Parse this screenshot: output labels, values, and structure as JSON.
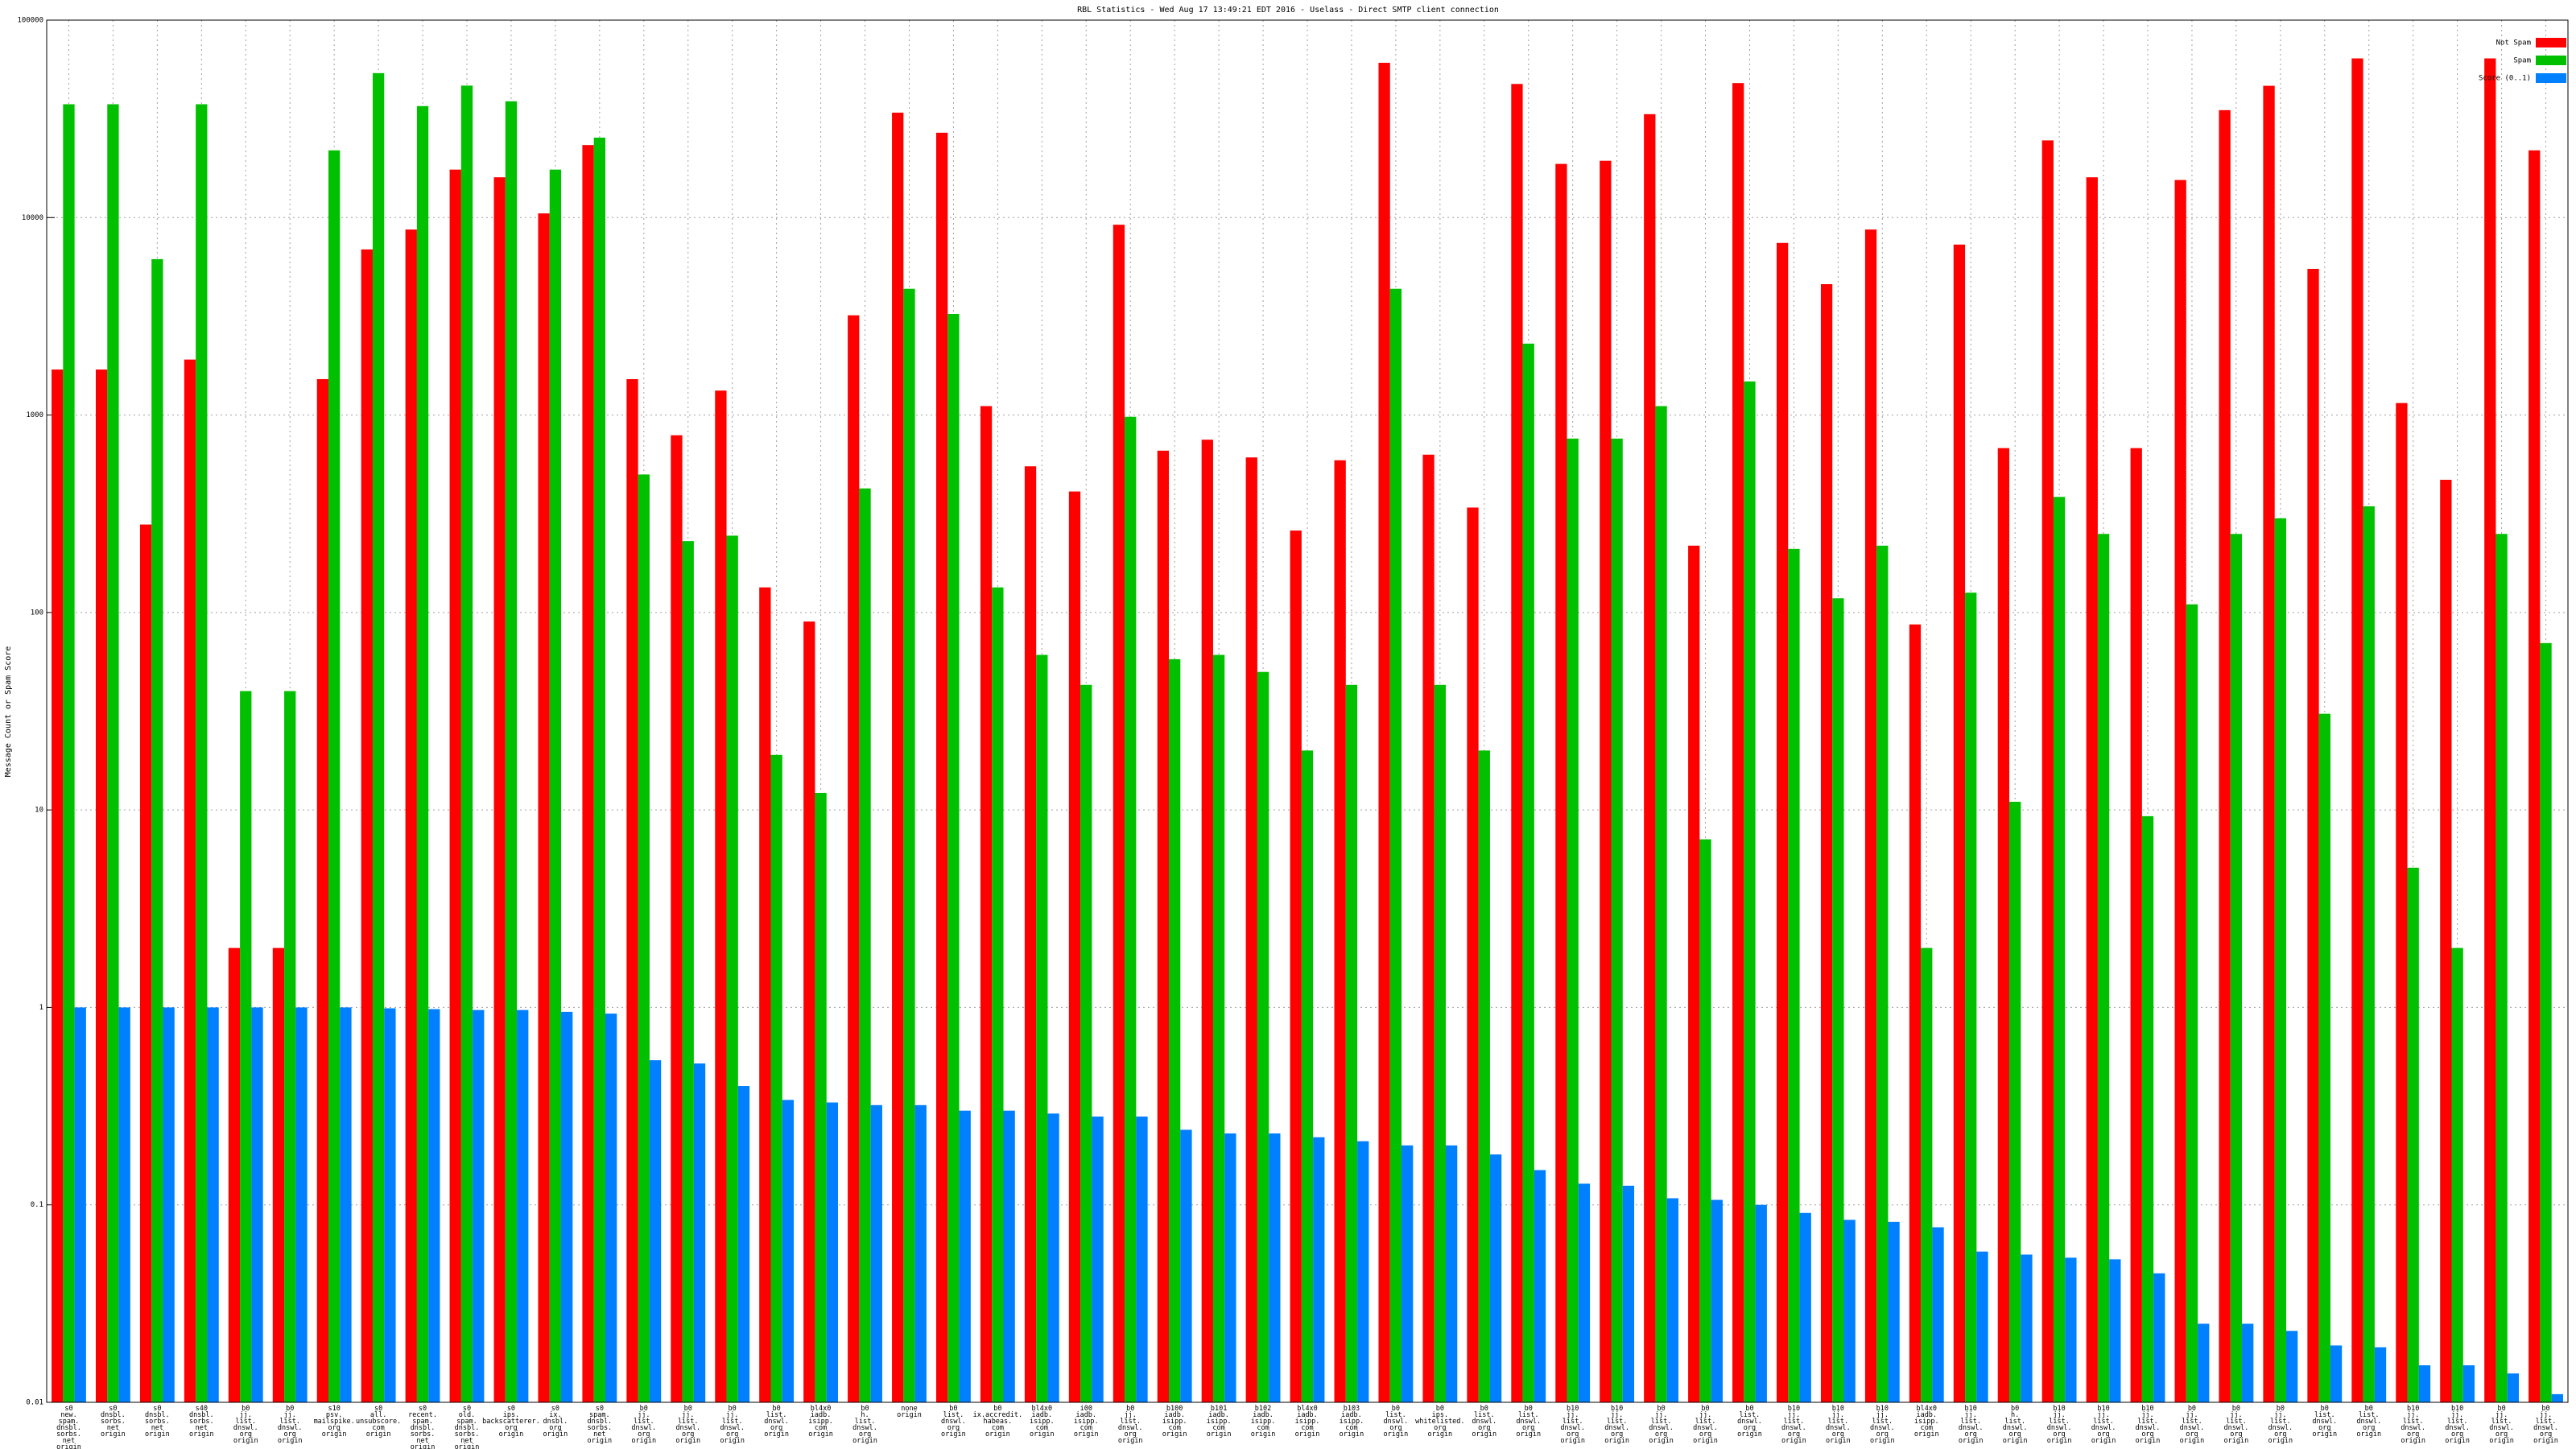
{
  "chart_data": {
    "type": "bar",
    "title": "RBL Statistics - Wed Aug 17 13:49:21 EDT 2016 - Uselass - Direct SMTP client connection",
    "y_label": "Message Count or Spam Score",
    "log_scale": true,
    "grid": true,
    "legend": "top-right",
    "ylim": [
      0.01,
      100000
    ],
    "yticks": [
      0.01,
      0.1,
      1,
      10,
      100,
      1000,
      10000,
      100000
    ],
    "categories": [
      [
        "s0",
        "new.",
        "spam.",
        "dnsbl.",
        "sorbs.",
        "net",
        "origin"
      ],
      [
        "s0",
        "dnsbl.",
        "sorbs.",
        "net",
        "origin"
      ],
      [
        "s0",
        "dnsbl.",
        "sorbs.",
        "net",
        "origin"
      ],
      [
        "s40",
        "dnsbl.",
        "sorbs.",
        "net",
        "origin"
      ],
      [
        "b0",
        "jj.",
        "list.",
        "dnswl.",
        "org",
        "origin"
      ],
      [
        "b0",
        "jj.",
        "list.",
        "dnswl.",
        "org",
        "origin"
      ],
      [
        "s10",
        "psv.",
        "mailspike.",
        "org",
        "origin"
      ],
      [
        "s0",
        "all.",
        "unsubscore.",
        "com",
        "origin"
      ],
      [
        "s0",
        "recent.",
        "spam.",
        "dnsbl.",
        "sorbs.",
        "net",
        "origin"
      ],
      [
        "s0",
        "old.",
        "spam.",
        "dnsbl.",
        "sorbs.",
        "net",
        "origin"
      ],
      [
        "s0",
        "ips.",
        "backscatterer.",
        "org",
        "origin"
      ],
      [
        "s0",
        "ix.",
        "dnsbl.",
        "org",
        "origin"
      ],
      [
        "s0",
        "spam.",
        "dnsbl.",
        "sorbs.",
        "net",
        "origin"
      ],
      [
        "b0",
        "jj.",
        "list.",
        "dnswl.",
        "org",
        "origin"
      ],
      [
        "b0",
        "jj.",
        "list.",
        "dnswl.",
        "org",
        "origin"
      ],
      [
        "b0",
        "jj.",
        "list.",
        "dnswl.",
        "org",
        "origin"
      ],
      [
        "b0",
        "list.",
        "dnswl.",
        "org",
        "origin"
      ],
      [
        "bl4x0",
        "iadb.",
        "isipp.",
        "com",
        "origin"
      ],
      [
        "b0",
        "h.",
        "list.",
        "dnswl.",
        "org",
        "origin"
      ],
      [
        "none",
        "origin"
      ],
      [
        "b0",
        "list.",
        "dnswl.",
        "org",
        "origin"
      ],
      [
        "b0",
        "ix.accredit.",
        "habeas.",
        "com",
        "origin"
      ],
      [
        "bl4x0",
        "iadb.",
        "isipp.",
        "com",
        "origin"
      ],
      [
        "i00",
        "iadb.",
        "isipp.",
        "com",
        "origin"
      ],
      [
        "b0",
        "jj.",
        "list.",
        "dnswl.",
        "org",
        "origin"
      ],
      [
        "b100",
        "iadb.",
        "isipp.",
        "com",
        "origin"
      ],
      [
        "b101",
        "iadb.",
        "isipp.",
        "com",
        "origin"
      ],
      [
        "b102",
        "iadb.",
        "isipp.",
        "com",
        "origin"
      ],
      [
        "bl4x0",
        "iadb.",
        "isipp.",
        "com",
        "origin"
      ],
      [
        "b103",
        "iadb.",
        "isipp.",
        "com",
        "origin"
      ],
      [
        "b0",
        "list.",
        "dnswl.",
        "org",
        "origin"
      ],
      [
        "b0",
        "ips.",
        "whitelisted.",
        "org",
        "origin"
      ],
      [
        "b0",
        "list.",
        "dnswl.",
        "org",
        "origin"
      ],
      [
        "b0",
        "list.",
        "dnswl.",
        "org",
        "origin"
      ],
      [
        "b10",
        "jj.",
        "list.",
        "dnswl.",
        "org",
        "origin"
      ],
      [
        "b10",
        "jj.",
        "list.",
        "dnswl.",
        "org",
        "origin"
      ],
      [
        "b0",
        "jj.",
        "list.",
        "dnswl.",
        "org",
        "origin"
      ],
      [
        "b0",
        "jj.",
        "list.",
        "dnswl.",
        "org",
        "origin"
      ],
      [
        "b0",
        "list.",
        "dnswl.",
        "org",
        "origin"
      ],
      [
        "b10",
        "jj.",
        "list.",
        "dnswl.",
        "org",
        "origin"
      ],
      [
        "b10",
        "jj.",
        "list.",
        "dnswl.",
        "org",
        "origin"
      ],
      [
        "b10",
        "jj.",
        "list.",
        "dnswl.",
        "org",
        "origin"
      ],
      [
        "bl4x0",
        "iadb.",
        "isipp.",
        "com",
        "origin"
      ],
      [
        "b10",
        "jj.",
        "list.",
        "dnswl.",
        "org",
        "origin"
      ],
      [
        "b0",
        "h.",
        "list.",
        "dnswl.",
        "org",
        "origin"
      ],
      [
        "b10",
        "jj.",
        "list.",
        "dnswl.",
        "org",
        "origin"
      ],
      [
        "b10",
        "jj.",
        "list.",
        "dnswl.",
        "org",
        "origin"
      ],
      [
        "b10",
        "jj.",
        "list.",
        "dnswl.",
        "org",
        "origin"
      ],
      [
        "b0",
        "jj.",
        "list.",
        "dnswl.",
        "org",
        "origin"
      ],
      [
        "b0",
        "jj.",
        "list.",
        "dnswl.",
        "org",
        "origin"
      ],
      [
        "b0",
        "jj.",
        "list.",
        "dnswl.",
        "org",
        "origin"
      ],
      [
        "b0",
        "list.",
        "dnswl.",
        "org",
        "origin"
      ],
      [
        "b0",
        "list.",
        "dnswl.",
        "org",
        "origin"
      ],
      [
        "b10",
        "jj.",
        "list.",
        "dnswl.",
        "org",
        "origin"
      ],
      [
        "b10",
        "jj.",
        "list.",
        "dnswl.",
        "org",
        "origin"
      ],
      [
        "b0",
        "jj.",
        "list.",
        "dnswl.",
        "org",
        "origin"
      ],
      [
        "b0",
        "jj.",
        "list.",
        "dnswl.",
        "org",
        "origin"
      ]
    ],
    "series": [
      {
        "name": "Not Spam",
        "color": "#ff0000",
        "values": [
          1700,
          1700,
          279,
          1910,
          2,
          2,
          1520,
          6900,
          8700,
          17500,
          16000,
          10500,
          23300,
          1520,
          790,
          1330,
          134,
          90,
          3200,
          34000,
          26900,
          1110,
          550,
          410,
          9200,
          660,
          750,
          610,
          260,
          590,
          60800,
          630,
          340,
          47500,
          18700,
          19400,
          33400,
          218,
          48000,
          7440,
          4600,
          8700,
          87,
          7300,
          680,
          24600,
          16000,
          680,
          15500,
          35000,
          46500,
          5500,
          64000,
          1150,
          470,
          64000,
          21900
        ]
      },
      {
        "name": "Spam",
        "color": "#00c000",
        "values": [
          37500,
          37500,
          6160,
          37500,
          40,
          40,
          21900,
          53900,
          36700,
          46600,
          38800,
          17500,
          25400,
          500,
          230,
          245,
          19,
          12.2,
          425,
          4360,
          3250,
          134,
          61,
          43,
          980,
          58,
          61,
          50,
          20,
          43,
          4360,
          43,
          20,
          2300,
          760,
          760,
          1110,
          7.1,
          1480,
          210,
          118,
          218,
          2,
          126,
          11,
          385,
          250,
          9.3,
          110,
          250,
          300,
          30.7,
          345,
          5.1,
          2,
          250,
          70
        ]
      },
      {
        "name": "Score (0..1)",
        "color": "#0080ff",
        "values": [
          1,
          1,
          1,
          1,
          1,
          1,
          1,
          0.99,
          0.98,
          0.97,
          0.97,
          0.95,
          0.93,
          0.54,
          0.52,
          0.4,
          0.34,
          0.33,
          0.32,
          0.32,
          0.3,
          0.3,
          0.29,
          0.28,
          0.28,
          0.24,
          0.23,
          0.23,
          0.22,
          0.21,
          0.2,
          0.2,
          0.18,
          0.15,
          0.128,
          0.125,
          0.108,
          0.106,
          0.1,
          0.091,
          0.084,
          0.082,
          0.077,
          0.058,
          0.056,
          0.054,
          0.053,
          0.045,
          0.025,
          0.025,
          0.023,
          0.0194,
          0.019,
          0.0154,
          0.0154,
          0.014,
          0.011
        ]
      }
    ]
  }
}
